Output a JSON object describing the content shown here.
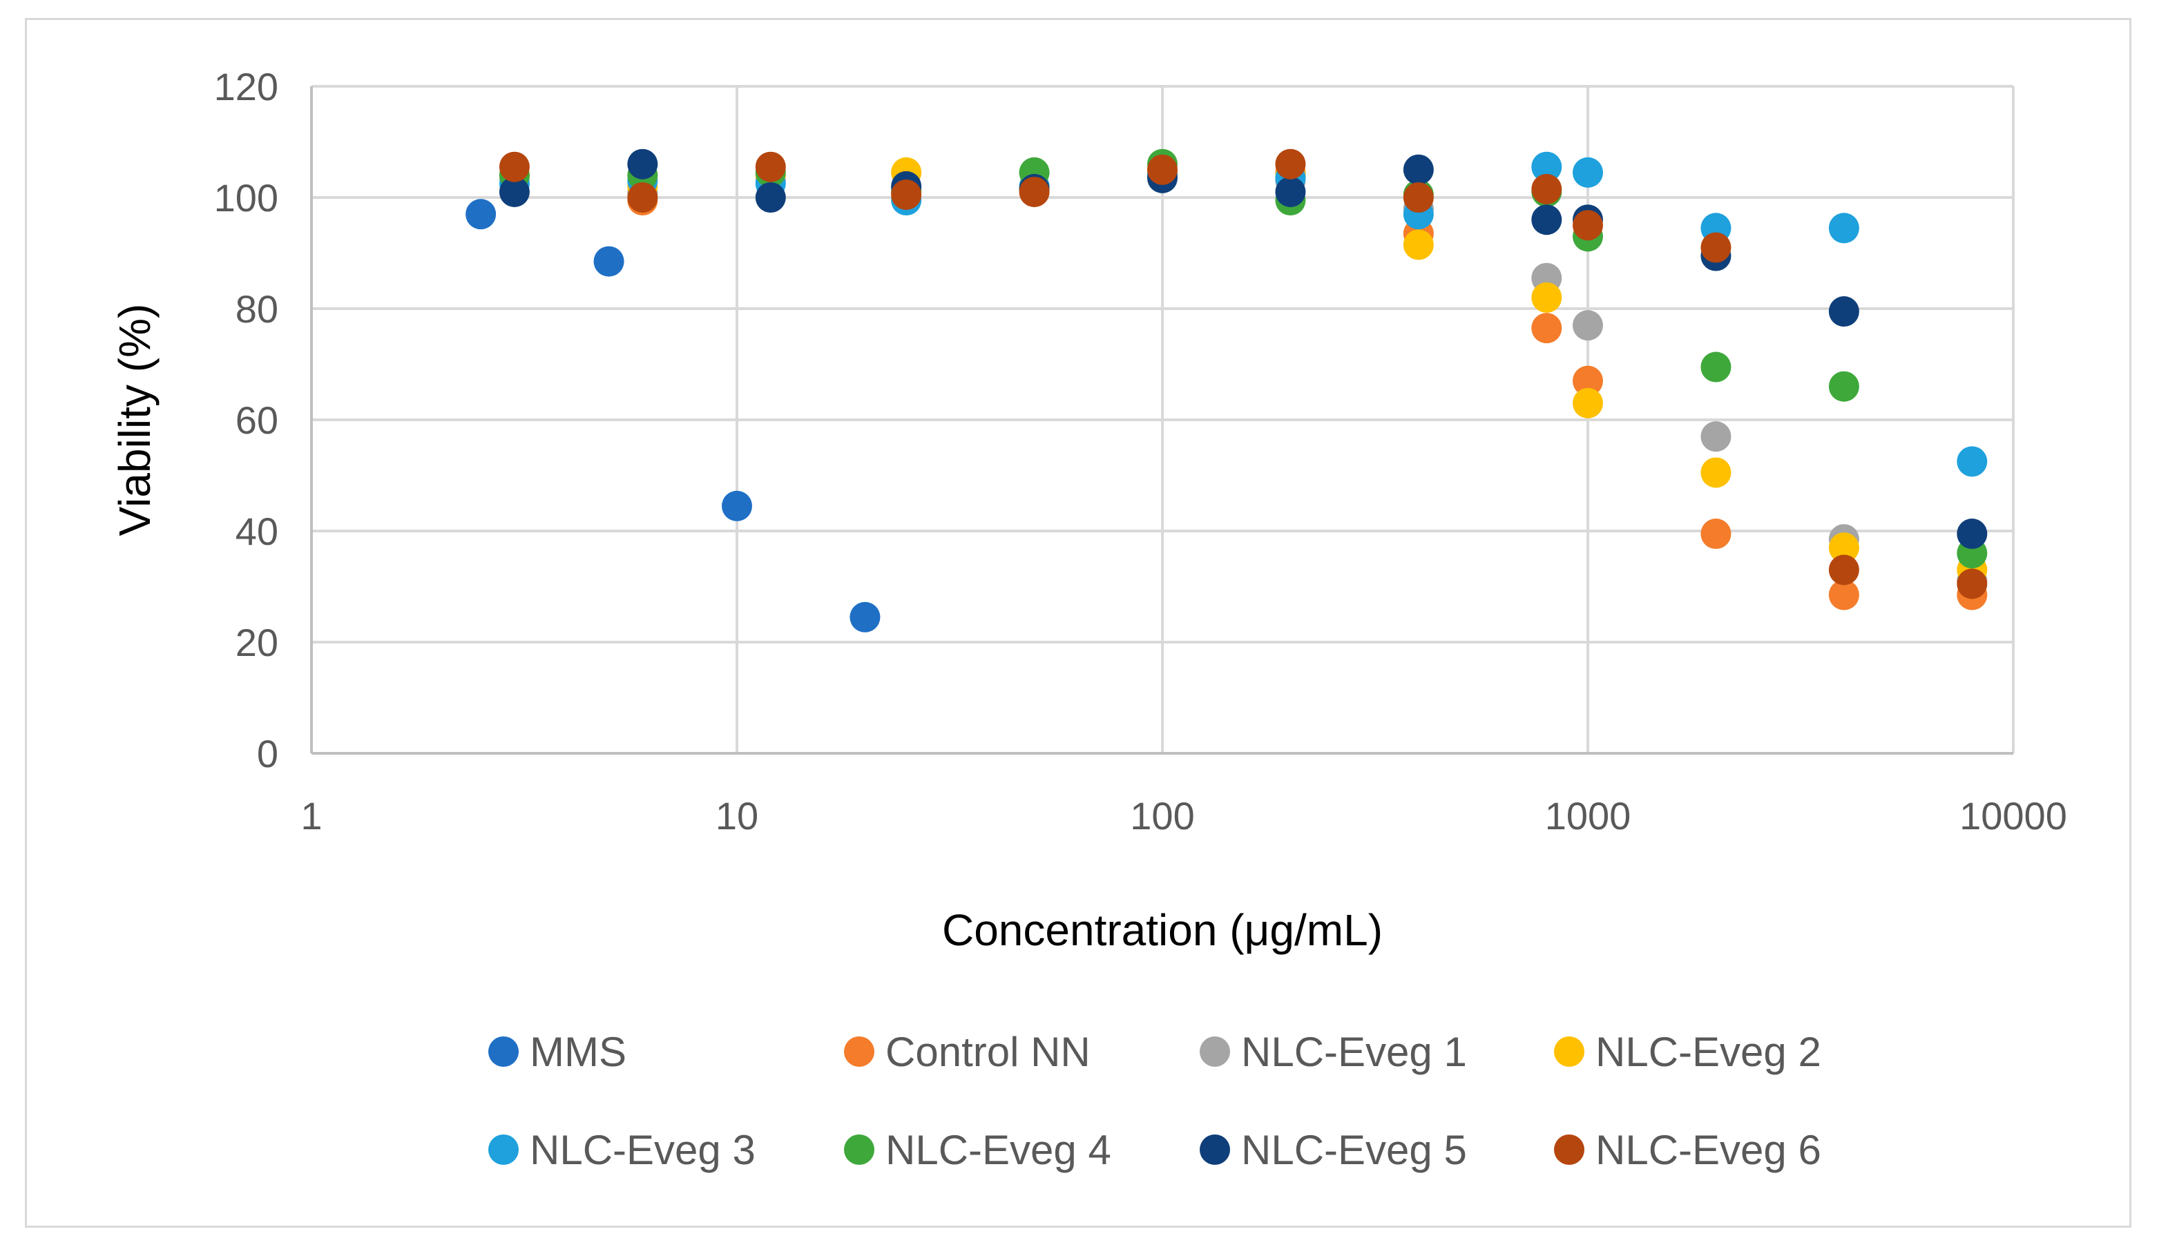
{
  "chart_data": {
    "type": "scatter",
    "title": "",
    "xlabel": "Concentration (μg/mL)",
    "ylabel": "Viability (%)",
    "xscale": "log",
    "xlim": [
      1,
      10000
    ],
    "ylim": [
      0,
      120
    ],
    "xticks": [
      1,
      10,
      100,
      1000,
      10000
    ],
    "xtick_labels": [
      "1",
      "10",
      "100",
      "1000",
      "10000"
    ],
    "yticks": [
      0,
      20,
      40,
      60,
      80,
      100,
      120
    ],
    "ytick_labels": [
      "0",
      "20",
      "40",
      "60",
      "80",
      "100",
      "120"
    ],
    "grid": true,
    "legend_position": "bottom",
    "series": [
      {
        "name": "MMS",
        "color": "#1f6fc5",
        "x": [
          2.5,
          5,
          10,
          20
        ],
        "y": [
          97,
          88.5,
          44.5,
          24.5
        ]
      },
      {
        "name": "Control NN",
        "color": "#f47c2a",
        "x": [
          3,
          6,
          12,
          25,
          50,
          100,
          200,
          400,
          800,
          1000,
          2000,
          4000,
          8000
        ],
        "y": [
          104,
          99.5,
          104,
          101,
          101.5,
          104.5,
          104.5,
          93.5,
          76.5,
          67,
          39.5,
          28.5,
          28.5
        ]
      },
      {
        "name": "NLC-Eveg 1",
        "color": "#a5a5a5",
        "x": [
          3,
          6,
          12,
          25,
          50,
          100,
          200,
          400,
          800,
          1000,
          2000,
          4000,
          8000
        ],
        "y": [
          103.5,
          101,
          103,
          101.5,
          102,
          104.5,
          103,
          98,
          85.5,
          77,
          57,
          38.5,
          31
        ]
      },
      {
        "name": "NLC-Eveg 2",
        "color": "#ffc000",
        "x": [
          3,
          6,
          12,
          25,
          50,
          100,
          200,
          400,
          800,
          1000,
          2000,
          4000,
          8000
        ],
        "y": [
          104,
          102,
          104,
          104.5,
          102,
          105,
          104,
          91.5,
          82,
          63,
          50.5,
          37,
          33
        ]
      },
      {
        "name": "NLC-Eveg 3",
        "color": "#1ea1dd",
        "x": [
          3,
          6,
          12,
          25,
          50,
          100,
          200,
          400,
          800,
          1000,
          2000,
          4000,
          8000
        ],
        "y": [
          102.5,
          103,
          102.5,
          99.5,
          102,
          104,
          103.5,
          97,
          105.5,
          104.5,
          94.5,
          94.5,
          52.5
        ]
      },
      {
        "name": "NLC-Eveg 4",
        "color": "#3ea83b",
        "x": [
          3,
          6,
          12,
          25,
          50,
          100,
          200,
          400,
          800,
          1000,
          2000,
          4000,
          8000
        ],
        "y": [
          104,
          104,
          104.5,
          101,
          104.5,
          106,
          99.5,
          100.5,
          101,
          93,
          69.5,
          66,
          36
        ]
      },
      {
        "name": "NLC-Eveg 5",
        "color": "#0f3f7a",
        "x": [
          3,
          6,
          12,
          25,
          50,
          100,
          200,
          400,
          800,
          1000,
          2000,
          4000,
          8000
        ],
        "y": [
          101,
          106,
          100,
          102,
          101.5,
          103.5,
          101,
          105,
          96,
          96,
          89.5,
          79.5,
          39.5
        ]
      },
      {
        "name": "NLC-Eveg 6",
        "color": "#b5460e",
        "x": [
          3,
          6,
          12,
          25,
          50,
          100,
          200,
          400,
          800,
          1000,
          2000,
          4000,
          8000
        ],
        "y": [
          105.5,
          100,
          105.5,
          100.5,
          101,
          105,
          106,
          100,
          101.5,
          95,
          91,
          33,
          30.5
        ]
      }
    ]
  }
}
